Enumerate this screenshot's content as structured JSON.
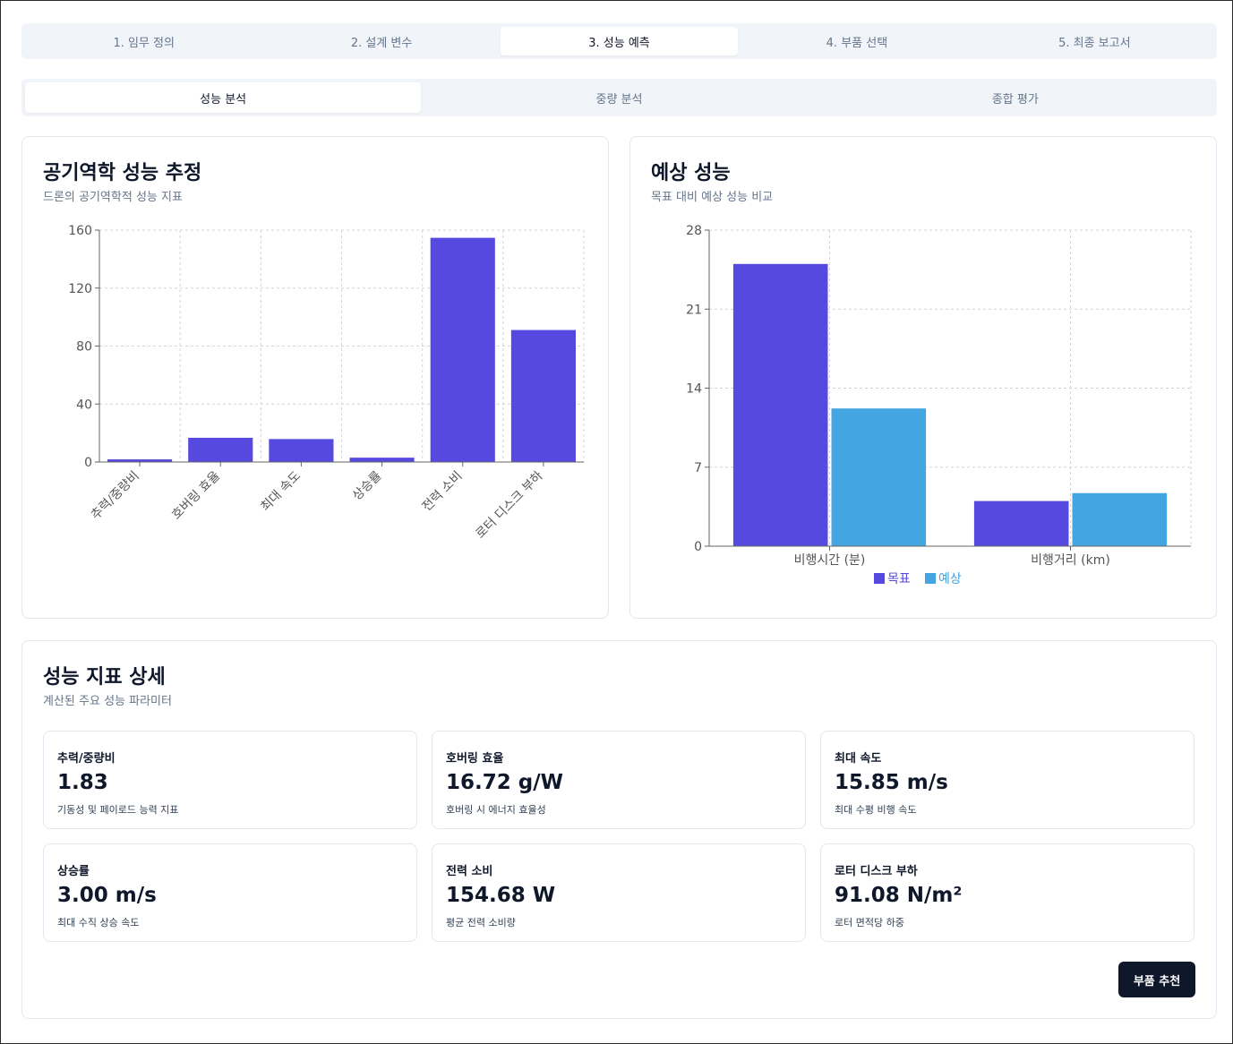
{
  "main_tabs": [
    {
      "label": "1. 임무 정의"
    },
    {
      "label": "2. 설계 변수"
    },
    {
      "label": "3. 성능 예측"
    },
    {
      "label": "4. 부품 선택"
    },
    {
      "label": "5. 최종 보고서"
    }
  ],
  "sub_tabs": [
    {
      "label": "성능 분석"
    },
    {
      "label": "중량 분석"
    },
    {
      "label": "종합 평가"
    }
  ],
  "aero_card": {
    "title": "공기역학 성능 추정",
    "subtitle": "드론의 공기역학적 성능 지표"
  },
  "perf_card": {
    "title": "예상 성능",
    "subtitle": "목표 대비 예상 성능 비교"
  },
  "chart_data": [
    {
      "type": "bar",
      "categories": [
        "추력/중량비",
        "호버링 효율",
        "최대 속도",
        "상승률",
        "전력 소비",
        "로터 디스크 부하"
      ],
      "values": [
        1.83,
        16.72,
        15.85,
        3.0,
        154.68,
        91.08
      ],
      "yticks": [
        0,
        40,
        80,
        120,
        160
      ],
      "ylim": [
        0,
        160
      ],
      "grid": true,
      "color": "#5649df"
    },
    {
      "type": "bar",
      "categories": [
        "비행시간 (분)",
        "비행거리 (km)"
      ],
      "series": [
        {
          "name": "목표",
          "values": [
            25,
            4
          ],
          "color": "#5649df"
        },
        {
          "name": "예상",
          "values": [
            12.2,
            4.7
          ],
          "color": "#43a5e2"
        }
      ],
      "yticks": [
        0,
        7,
        14,
        21,
        28
      ],
      "ylim": [
        0,
        28
      ],
      "grid": true,
      "legend": "bottom"
    }
  ],
  "detail_card": {
    "title": "성능 지표 상세",
    "subtitle": "계산된 주요 성능 파라미터"
  },
  "metrics": [
    {
      "label": "추력/중량비",
      "value": "1.83",
      "desc": "기동성 및 페이로드 능력 지표"
    },
    {
      "label": "호버링 효율",
      "value": "16.72 g/W",
      "desc": "호버링 시 에너지 효율성"
    },
    {
      "label": "최대 속도",
      "value": "15.85 m/s",
      "desc": "최대 수평 비행 속도"
    },
    {
      "label": "상승률",
      "value": "3.00 m/s",
      "desc": "최대 수직 상승 속도"
    },
    {
      "label": "전력 소비",
      "value": "154.68 W",
      "desc": "평균 전력 소비량"
    },
    {
      "label": "로터 디스크 부하",
      "value": "91.08 N/m²",
      "desc": "로터 면적당 하중"
    }
  ],
  "recommend_button": "부품 추천"
}
